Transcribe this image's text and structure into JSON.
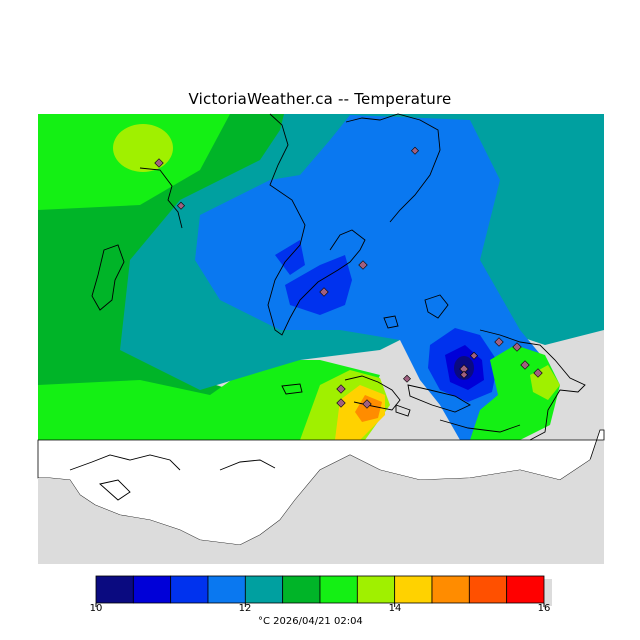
{
  "title": "VictoriaWeather.ca -- Temperature",
  "legend": {
    "ticks": [
      "10",
      "12",
      "14",
      "16"
    ],
    "unit": "°C",
    "timestamp": "2026/04/21 02:04",
    "colors": [
      "#0a0a80",
      "#0000d8",
      "#0032ee",
      "#0a78f0",
      "#00a0a0",
      "#00b428",
      "#14f014",
      "#a0f000",
      "#ffd200",
      "#ff8c00",
      "#ff5000",
      "#ff0000"
    ],
    "range": [
      10,
      16
    ]
  },
  "footer_text": "°C  2026/04/21 02:04",
  "map": {
    "land_unmodelled_color": "#ffffff",
    "water_color": "#dcdcdc",
    "station_marker_color": "#a06080"
  },
  "stations": [
    {
      "lon_frac": 0.215,
      "lat_frac": 0.11
    },
    {
      "lon_frac": 0.25,
      "lat_frac": 0.21
    },
    {
      "lon_frac": 0.672,
      "lat_frac": 0.08
    },
    {
      "lon_frac": 0.56,
      "lat_frac": 0.34
    },
    {
      "lon_frac": 0.505,
      "lat_frac": 0.36
    }
  ]
}
